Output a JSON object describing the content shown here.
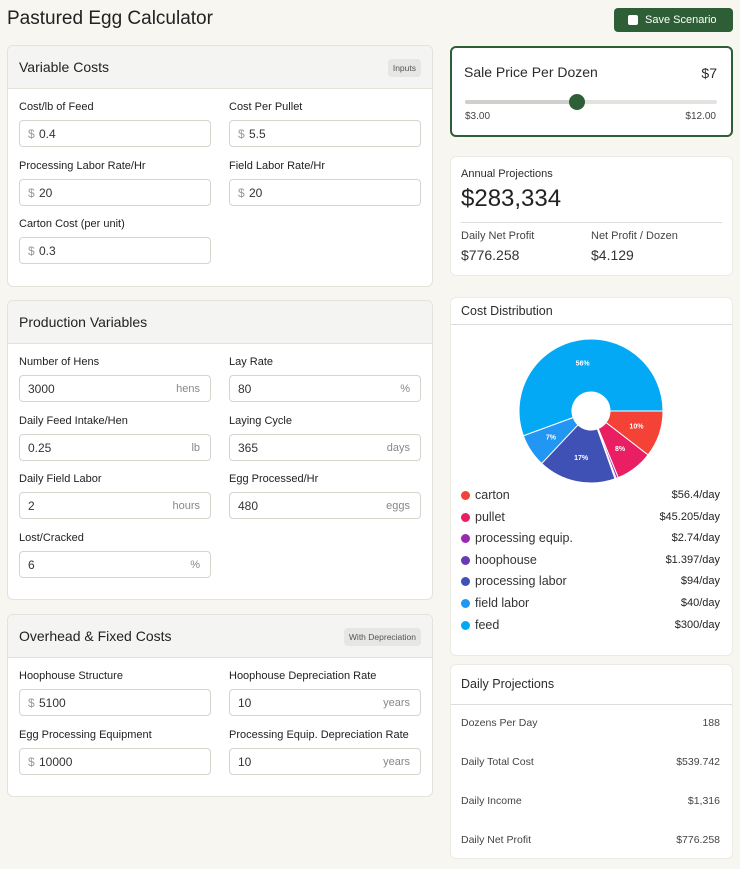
{
  "header": {
    "title": "Pastured Egg Calculator",
    "button": "Save Scenario"
  },
  "sections": [
    {
      "title": "Variable Costs",
      "badge": "Inputs",
      "fields": [
        {
          "label": "Cost/lb of Feed",
          "prefix": "$",
          "value": "0.4"
        },
        {
          "label": "Cost Per Pullet",
          "prefix": "$",
          "value": "5.5"
        },
        {
          "label": "Processing Labor Rate/Hr",
          "prefix": "$",
          "value": "20"
        },
        {
          "label": "Field Labor Rate/Hr",
          "prefix": "$",
          "value": "20"
        },
        {
          "label": "Carton Cost (per unit)",
          "prefix": "$",
          "value": "0.3"
        }
      ]
    },
    {
      "title": "Production Variables",
      "fields": [
        {
          "label": "Number of Hens",
          "value": "3000",
          "suffix": "hens"
        },
        {
          "label": "Lay Rate",
          "value": "80",
          "suffix": "%"
        },
        {
          "label": "Daily Feed Intake/Hen",
          "value": "0.25",
          "suffix": "lb"
        },
        {
          "label": "Laying Cycle",
          "value": "365",
          "suffix": "days"
        },
        {
          "label": "Daily Field Labor",
          "value": "2",
          "suffix": "hours"
        },
        {
          "label": "Egg Processed/Hr",
          "value": "480",
          "suffix": "eggs"
        },
        {
          "label": "Lost/Cracked",
          "value": "6",
          "suffix": "%"
        }
      ]
    },
    {
      "title": "Overhead & Fixed Costs",
      "badge": "With Depreciation",
      "fields": [
        {
          "label": "Hoophouse Structure",
          "prefix": "$",
          "value": "5100"
        },
        {
          "label": "Hoophouse Depreciation Rate",
          "value": "10",
          "suffix": "years"
        },
        {
          "label": "Egg Processing Equipment",
          "prefix": "$",
          "value": "10000"
        },
        {
          "label": "Processing Equip. Depreciation Rate",
          "value": "10",
          "suffix": "years"
        }
      ]
    }
  ],
  "sale_price": {
    "label": "Sale Price Per Dozen",
    "value_label": "$7",
    "value": 7,
    "min": 3,
    "max": 12,
    "min_label": "$3.00",
    "max_label": "$12.00"
  },
  "annual": {
    "title": "Annual Projections",
    "value": "$283,334",
    "metrics": [
      {
        "label": "Daily Net Profit",
        "value": "$776.258"
      },
      {
        "label": "Net Profit / Dozen",
        "value": "$4.129"
      }
    ]
  },
  "chart_data": {
    "type": "pie",
    "donut": true,
    "title": "Cost Distribution",
    "categories": [
      "carton",
      "pullet",
      "processing equip.",
      "hoophouse",
      "processing labor",
      "field labor",
      "feed"
    ],
    "values": [
      56.4,
      45.205,
      2.74,
      1.397,
      94,
      40,
      300
    ],
    "value_labels": [
      "$56.4/day",
      "$45.205/day",
      "$2.74/day",
      "$1.397/day",
      "$94/day",
      "$40/day",
      "$300/day"
    ],
    "percent_labels": [
      "10%",
      "8%",
      null,
      null,
      "17%",
      "7%",
      "56%"
    ],
    "colors": [
      "#f44336",
      "#e91e63",
      "#9c27b0",
      "#673ab7",
      "#3f51b5",
      "#2196f3",
      "#03a9f4"
    ]
  },
  "daily": {
    "title": "Daily Projections",
    "rows": [
      {
        "label": "Dozens Per Day",
        "value": "188"
      },
      {
        "label": "Daily Total Cost",
        "value": "$539.742"
      },
      {
        "label": "Daily Income",
        "value": "$1,316"
      },
      {
        "label": "Daily Net Profit",
        "value": "$776.258"
      }
    ]
  }
}
